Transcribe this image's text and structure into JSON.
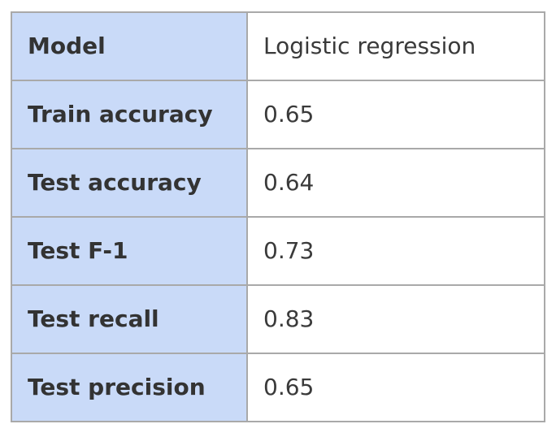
{
  "table": {
    "rows": [
      {
        "label": "Model",
        "value": "Logistic regression"
      },
      {
        "label": "Train accuracy",
        "value": "0.65"
      },
      {
        "label": "Test accuracy",
        "value": "0.64"
      },
      {
        "label": "Test F-1",
        "value": "0.73"
      },
      {
        "label": "Test recall",
        "value": "0.83"
      },
      {
        "label": "Test precision",
        "value": "0.65"
      }
    ]
  },
  "colors": {
    "label_background": "#c9daf8",
    "value_background": "#ffffff",
    "border": "#a9a9a9"
  }
}
